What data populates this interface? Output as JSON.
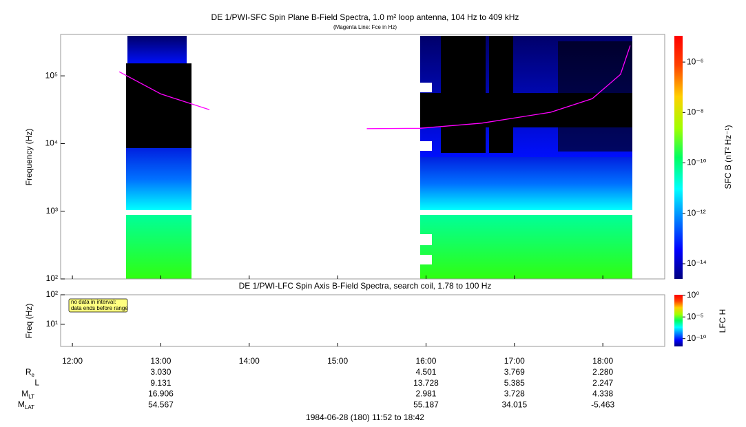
{
  "chart_data": [
    {
      "type": "spectrogram",
      "title": "DE 1/PWI-SFC  Spin Plane B-Field Spectra, 1.0 m² loop antenna, 104 Hz to 409 kHz",
      "subtitle": "(Magenta Line: Fce in Hz)",
      "y_label": "Frequency (Hz)",
      "log_y": true,
      "ylim": [
        100,
        409000
      ],
      "yticks": [
        {
          "value": 100,
          "label": "10²"
        },
        {
          "value": 1000,
          "label": "10³"
        },
        {
          "value": 10000,
          "label": "10⁴"
        },
        {
          "value": 100000,
          "label": "10⁵"
        }
      ],
      "colorbar_label": "SFC B (nT² Hz⁻¹)",
      "clim": [
        2.5e-15,
        1.1e-05
      ],
      "cticks": [
        {
          "value": 1e-06,
          "label": "10⁻⁶"
        },
        {
          "value": 1e-08,
          "label": "10⁻⁸"
        },
        {
          "value": 1e-10,
          "label": "10⁻¹⁰"
        },
        {
          "value": 1e-12,
          "label": "10⁻¹²"
        },
        {
          "value": 1e-14,
          "label": "10⁻¹⁴"
        }
      ],
      "line": {
        "color": "#ff00ff",
        "x": [
          12.53,
          13.0,
          13.55,
          14.4,
          15.33,
          15.93,
          16.63,
          17.41,
          17.88,
          18.2,
          18.31
        ],
        "values": [
          115000,
          54000,
          31600,
          null,
          16600,
          16800,
          20000,
          29000,
          46000,
          105000,
          280000
        ]
      }
    },
    {
      "type": "spectrogram",
      "title": "DE 1/PWI-LFC  Spin Axis B-Field Spectra, search coil, 1.78 to 100 Hz",
      "y_label": "Freq (Hz)",
      "log_y": true,
      "ylim": [
        1.78,
        100
      ],
      "yticks": [
        {
          "value": 10,
          "label": "10¹"
        },
        {
          "value": 100,
          "label": "10²"
        }
      ],
      "colorbar_label": "LFC H",
      "clim": [
        1.6e-12,
        1.3
      ],
      "cticks": [
        {
          "value": 1,
          "label": "10⁰"
        },
        {
          "value": 1e-05,
          "label": "10⁻⁵"
        },
        {
          "value": 1e-10,
          "label": "10⁻¹⁰"
        }
      ],
      "annotation": [
        "no data in interval:",
        "data ends before range"
      ]
    }
  ],
  "time_axis": {
    "xlim": [
      11.8667,
      18.7
    ],
    "xticks": [
      {
        "value": 12,
        "label": "12:00"
      },
      {
        "value": 13,
        "label": "13:00"
      },
      {
        "value": 14,
        "label": "14:00"
      },
      {
        "value": 15,
        "label": "15:00"
      },
      {
        "value": 16,
        "label": "16:00"
      },
      {
        "value": 17,
        "label": "17:00"
      },
      {
        "value": 18,
        "label": "18:00"
      }
    ]
  },
  "ephemeris": [
    {
      "label": "R",
      "sub": "e",
      "values": [
        null,
        "3.030",
        null,
        null,
        "4.501",
        "3.769",
        "2.280"
      ]
    },
    {
      "label": "L",
      "values": [
        null,
        "9.131",
        null,
        null,
        "13.728",
        "5.385",
        "2.247"
      ]
    },
    {
      "label": "M",
      "sub": "LT",
      "values": [
        null,
        "16.906",
        null,
        null,
        "2.981",
        "3.728",
        "4.338"
      ]
    },
    {
      "label": "M",
      "sub": "LAT",
      "values": [
        null,
        "54.567",
        null,
        null,
        "55.187",
        "34.015",
        "-5.463"
      ]
    }
  ],
  "footer": "1984-06-28 (180) 11:52 to 18:42"
}
